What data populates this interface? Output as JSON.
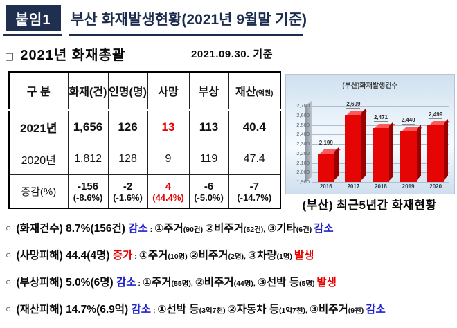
{
  "header": {
    "badge_label": "붙임1",
    "title": "부산 화재발생현황(2021년 9월말 기준)"
  },
  "section": {
    "marker": "□",
    "title": "2021년 화재총괄",
    "date_note": "2021.09.30. 기준"
  },
  "table": {
    "headers": [
      {
        "main": "구  분"
      },
      {
        "main": "화재(건)"
      },
      {
        "main": "인명(명)"
      },
      {
        "main": "사망"
      },
      {
        "main": "부상"
      },
      {
        "main": "재산",
        "sub": "(억원)"
      }
    ],
    "rows": [
      {
        "label": "2021년",
        "kind": "r-2021",
        "cells": [
          {
            "v": "1,656"
          },
          {
            "v": "126"
          },
          {
            "v": "13",
            "red": true
          },
          {
            "v": "113"
          },
          {
            "v": "40.4"
          }
        ]
      },
      {
        "label": "2020년",
        "kind": "r-2020",
        "cells": [
          {
            "v": "1,812"
          },
          {
            "v": "128"
          },
          {
            "v": "9"
          },
          {
            "v": "119"
          },
          {
            "v": "47.4"
          }
        ]
      },
      {
        "label": "증감(%)",
        "kind": "r-diff",
        "cells": [
          {
            "v": "-156",
            "p": "(-8.6%)"
          },
          {
            "v": "-2",
            "p": "(-1.6%)"
          },
          {
            "v": "4",
            "p": "(44.4%)",
            "red": true
          },
          {
            "v": "-6",
            "p": "(-5.0%)"
          },
          {
            "v": "-7",
            "p": "(-14.7%)"
          }
        ]
      }
    ]
  },
  "chart_data": {
    "type": "bar",
    "title": "(부산)화재발생건수",
    "caption": "(부산) 최근5년간 화재현황",
    "categories": [
      "2016",
      "2017",
      "2018",
      "2019",
      "2020"
    ],
    "values": [
      2199,
      2609,
      2471,
      2440,
      2499
    ],
    "value_labels": [
      "2,199",
      "2,609",
      "2,471",
      "2,440",
      "2,499"
    ],
    "ylim": [
      1900,
      2700
    ],
    "ytick_labels": [
      "2,700",
      "2,600",
      "2,500",
      "2,400",
      "2,300",
      "2,200",
      "2,100",
      "2,000",
      "1,900"
    ],
    "grid": true,
    "legend_position": "none",
    "bar_color": "#e60505"
  },
  "bullets": [
    {
      "marker": "○",
      "segments": [
        {
          "t": "(화재건수) 8.7%(156건) ",
          "c": "t"
        },
        {
          "t": "감소",
          "c": "blue"
        },
        {
          "t": " : ",
          "c": "s"
        },
        {
          "t": "①주거",
          "c": "t"
        },
        {
          "t": "(90건) ",
          "c": "s"
        },
        {
          "t": "②비주거",
          "c": "t"
        },
        {
          "t": "(52건), ",
          "c": "s"
        },
        {
          "t": "③기타",
          "c": "t"
        },
        {
          "t": "(6건) ",
          "c": "s"
        },
        {
          "t": "감소",
          "c": "blue"
        }
      ]
    },
    {
      "marker": "○",
      "segments": [
        {
          "t": "(사망피해) 44.4(4명) ",
          "c": "t"
        },
        {
          "t": "증가",
          "c": "red"
        },
        {
          "t": "  : ",
          "c": "s"
        },
        {
          "t": "①주거",
          "c": "t"
        },
        {
          "t": "(10명)  ",
          "c": "s"
        },
        {
          "t": "②비주거",
          "c": "t"
        },
        {
          "t": "(2명), ",
          "c": "s"
        },
        {
          "t": "③차량",
          "c": "t"
        },
        {
          "t": "(1명) ",
          "c": "s"
        },
        {
          "t": "발생",
          "c": "red"
        }
      ]
    },
    {
      "marker": "○",
      "segments": [
        {
          "t": "(부상피해) 5.0%(6명) ",
          "c": "t"
        },
        {
          "t": "감소",
          "c": "blue"
        },
        {
          "t": " : ",
          "c": "s"
        },
        {
          "t": "①주거",
          "c": "t"
        },
        {
          "t": "(55명), ",
          "c": "s"
        },
        {
          "t": "②비주거",
          "c": "t"
        },
        {
          "t": "(44명), ",
          "c": "s"
        },
        {
          "t": "③선박 등",
          "c": "t"
        },
        {
          "t": "(5명) ",
          "c": "s"
        },
        {
          "t": "발생",
          "c": "red"
        }
      ]
    },
    {
      "marker": "○",
      "segments": [
        {
          "t": "(재산피해) 14.7%(6.9억) ",
          "c": "t"
        },
        {
          "t": "감소",
          "c": "blue"
        },
        {
          "t": " : ",
          "c": "s"
        },
        {
          "t": "①선박 등",
          "c": "t"
        },
        {
          "t": "(3억7천) ",
          "c": "s"
        },
        {
          "t": "②자동차 등",
          "c": "t"
        },
        {
          "t": "(1억7천), ",
          "c": "s"
        },
        {
          "t": "③비주거",
          "c": "t"
        },
        {
          "t": "(9천) ",
          "c": "s"
        },
        {
          "t": "감소",
          "c": "blue"
        }
      ]
    }
  ],
  "colors": {
    "navy": "#1c2c4e",
    "red": "#e60000",
    "blue": "#2222cc",
    "bar_red": "#e60505"
  }
}
